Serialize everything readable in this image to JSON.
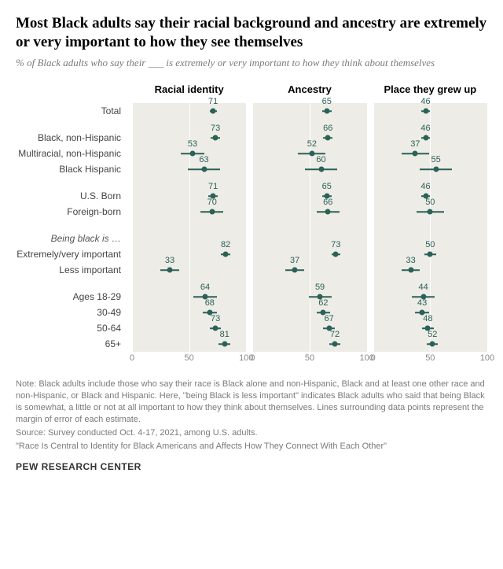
{
  "title": "Most Black adults say their racial background and ancestry are extremely or very important to how they see themselves",
  "title_fontsize": 19,
  "subtitle": "% of Black adults who say their ___ is extremely or very important to how they think about themselves",
  "subtitle_fontsize": 13,
  "panel_bg": "#edece7",
  "gridline_color": "#ffffff",
  "point_color": "#2b6157",
  "moe_color": "#2b6157",
  "label_color": "#2b6157",
  "label_fontsize": 11,
  "row_label_fontsize": 12,
  "axis_fontsize": 11,
  "header_fontsize": 13,
  "xlim": [
    0,
    100
  ],
  "xticks": [
    0,
    50,
    100
  ],
  "panels": [
    {
      "name": "Racial identity"
    },
    {
      "name": "Ancestry"
    },
    {
      "name": "Place they grew up"
    }
  ],
  "groups": [
    {
      "heading": null,
      "rows": [
        {
          "label": "Total",
          "vals": [
            71,
            65,
            46
          ],
          "moe": [
            3,
            4,
            4
          ]
        }
      ]
    },
    {
      "heading": null,
      "rows": [
        {
          "label": "Black, non-Hispanic",
          "vals": [
            73,
            66,
            46
          ],
          "moe": [
            4,
            4,
            4
          ]
        },
        {
          "label": "Multiracial, non-Hispanic",
          "vals": [
            53,
            52,
            37
          ],
          "moe": [
            10,
            12,
            12
          ]
        },
        {
          "label": "Black Hispanic",
          "vals": [
            63,
            60,
            55
          ],
          "moe": [
            14,
            14,
            14
          ]
        }
      ]
    },
    {
      "heading": null,
      "rows": [
        {
          "label": "U.S. Born",
          "vals": [
            71,
            65,
            46
          ],
          "moe": [
            4,
            4,
            4
          ]
        },
        {
          "label": "Foreign-born",
          "vals": [
            70,
            66,
            50
          ],
          "moe": [
            10,
            10,
            12
          ]
        }
      ]
    },
    {
      "heading": "Being black is …",
      "rows": [
        {
          "label": "Extremely/very important",
          "vals": [
            82,
            73,
            50
          ],
          "moe": [
            4,
            4,
            5
          ]
        },
        {
          "label": "Less important",
          "vals": [
            33,
            37,
            33
          ],
          "moe": [
            8,
            8,
            8
          ]
        }
      ]
    },
    {
      "heading": null,
      "rows": [
        {
          "label": "Ages 18-29",
          "vals": [
            64,
            59,
            44
          ],
          "moe": [
            10,
            10,
            10
          ]
        },
        {
          "label": "30-49",
          "vals": [
            68,
            62,
            43
          ],
          "moe": [
            6,
            6,
            6
          ]
        },
        {
          "label": "50-64",
          "vals": [
            73,
            67,
            48
          ],
          "moe": [
            5,
            5,
            5
          ]
        },
        {
          "label": "65+",
          "vals": [
            81,
            72,
            52
          ],
          "moe": [
            5,
            5,
            5
          ]
        }
      ]
    }
  ],
  "notes": [
    "Note: Black adults include those who say their race is Black alone and non-Hispanic, Black and at least one other race and non-Hispanic, or Black and Hispanic.  Here, \"being Black is less important\" indicates Black adults who said that being Black is somewhat, a little or not at all important to how they think about themselves. Lines surrounding data points represent the margin of error of each estimate.",
    "Source: Survey conducted Oct. 4-17, 2021, among U.S. adults.",
    "\"Race Is Central to Identity for Black Americans and Affects How They Connect With Each Other\""
  ],
  "notes_fontsize": 11,
  "footer": "PEW RESEARCH CENTER",
  "footer_fontsize": 12
}
